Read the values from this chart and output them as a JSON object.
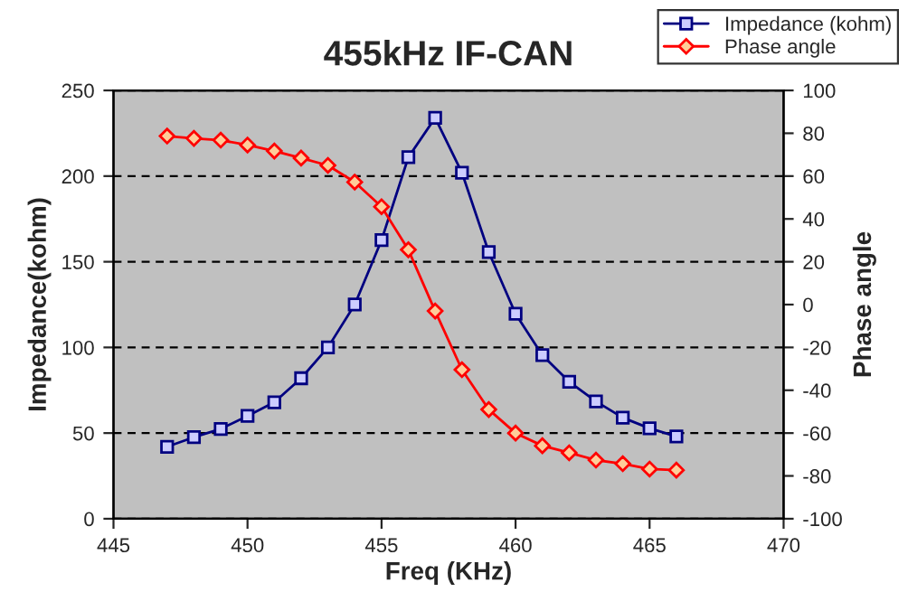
{
  "chart_data": {
    "type": "line",
    "title": "455kHz IF-CAN",
    "xlabel": "Freq (KHz)",
    "ylabel": "Impedance(kohm)",
    "y2label": "Phase angle",
    "x": [
      447,
      448,
      449,
      450,
      451,
      452,
      453,
      454,
      455,
      456,
      457,
      458,
      459,
      460,
      461,
      462,
      463,
      464,
      465,
      466
    ],
    "series": [
      {
        "name": "Impedance (kohm)",
        "color": "#000080",
        "marker": "square",
        "values": [
          42,
          47.6,
          52.4,
          60,
          68,
          82,
          100,
          125,
          162.6,
          211,
          234,
          202,
          155.6,
          119.6,
          95.5,
          80,
          68.5,
          59,
          52.8,
          48
        ]
      },
      {
        "name": "Phase angle",
        "color": "#ff0000",
        "marker": "diamond",
        "axis": "y2",
        "values": [
          78.7,
          77.6,
          76.8,
          74.5,
          71.7,
          68.4,
          65,
          57.2,
          45.7,
          25.6,
          -3,
          -30.4,
          -49,
          -60,
          -65.9,
          -69.2,
          -72.6,
          -74.3,
          -76.8,
          -77.3
        ]
      }
    ],
    "xlim": [
      445,
      470
    ],
    "xticks": [
      445,
      450,
      455,
      460,
      465,
      470
    ],
    "ylim": [
      0,
      250
    ],
    "yticks": [
      0,
      50,
      100,
      150,
      200,
      250
    ],
    "y2lim": [
      -100,
      100
    ],
    "y2ticks": [
      -100,
      -80,
      -60,
      -40,
      -20,
      0,
      20,
      40,
      60,
      80,
      100
    ],
    "grid": "y",
    "legend": "top right",
    "line_style": "solid"
  }
}
